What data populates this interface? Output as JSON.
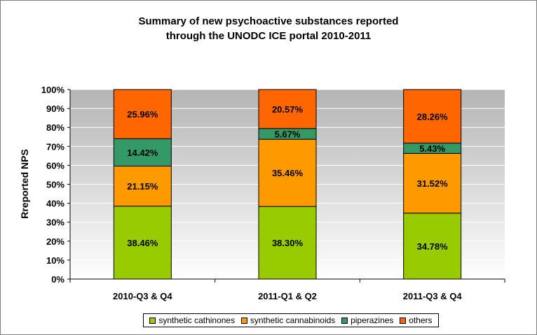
{
  "chart_data": {
    "type": "bar",
    "stacked": true,
    "title_lines": [
      "Summary of new psychoactive substances reported",
      "through the UNODC ICE portal 2010-2011"
    ],
    "ylabel": "Rreported NPS",
    "xlabel": "",
    "ylim": [
      0,
      100
    ],
    "yticks": [
      "0%",
      "10%",
      "20%",
      "30%",
      "40%",
      "50%",
      "60%",
      "70%",
      "80%",
      "90%",
      "100%"
    ],
    "categories": [
      "2010-Q3 & Q4",
      "2011-Q1 & Q2",
      "2011-Q3 & Q4"
    ],
    "series": [
      {
        "name": "synthetic cathinones",
        "color": "#99cc00",
        "values": [
          38.46,
          38.3,
          34.78
        ],
        "labels": [
          "38.46%",
          "38.30%",
          "34.78%"
        ]
      },
      {
        "name": "synthetic cannabinoids",
        "color": "#ff9900",
        "values": [
          21.15,
          35.46,
          31.52
        ],
        "labels": [
          "21.15%",
          "35.46%",
          "31.52%"
        ]
      },
      {
        "name": "piperazines",
        "color": "#339966",
        "values": [
          14.42,
          5.67,
          5.43
        ],
        "labels": [
          "14.42%",
          "5.67%",
          "5.43%"
        ]
      },
      {
        "name": "others",
        "color": "#ff6600",
        "values": [
          25.96,
          20.57,
          28.26
        ],
        "labels": [
          "25.96%",
          "20.57%",
          "28.26%"
        ]
      }
    ],
    "grid": true,
    "legend_position": "bottom",
    "plot_background": "#c0c0c0"
  }
}
